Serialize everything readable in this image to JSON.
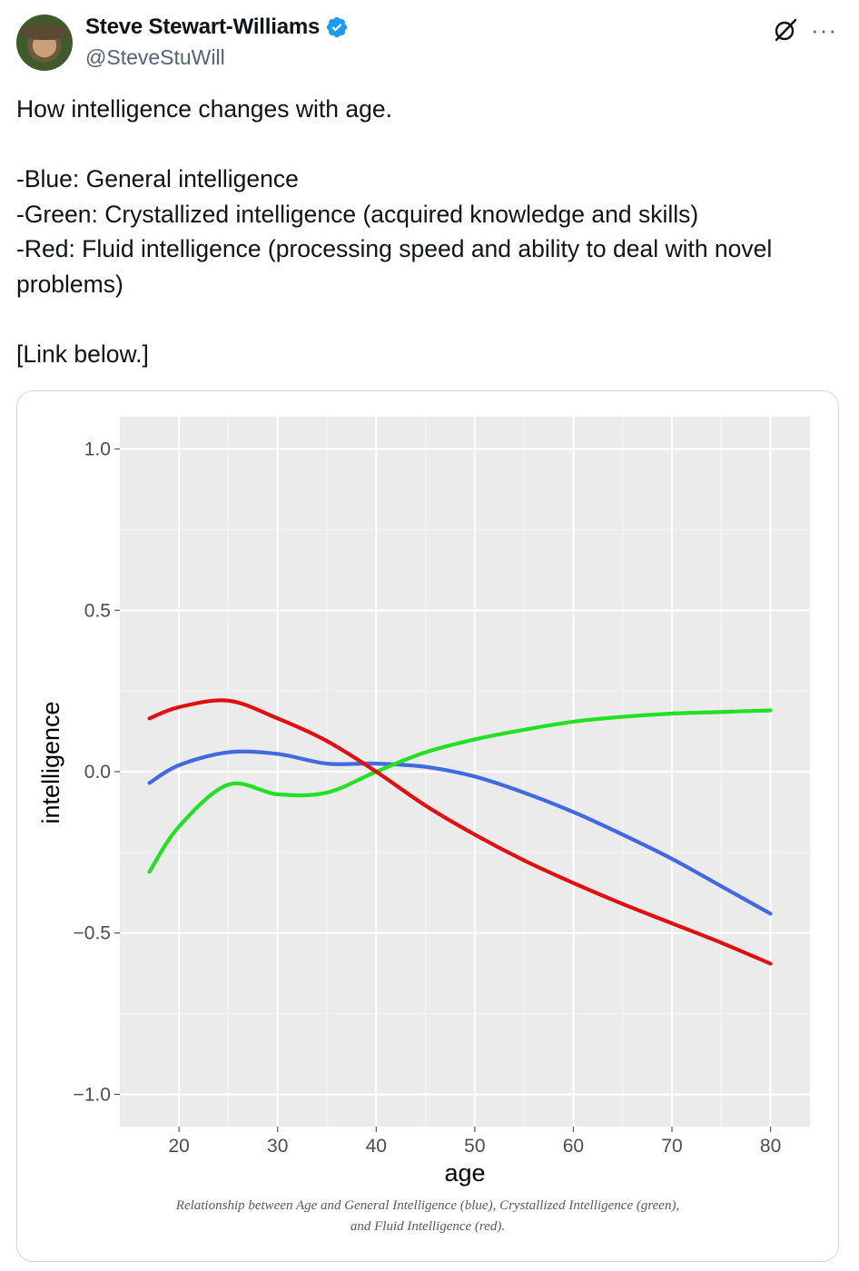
{
  "author": {
    "name": "Steve Stewart-Williams",
    "handle": "@SteveStuWill",
    "verified": true,
    "avatar_icon": "avatar-photo"
  },
  "header_actions": {
    "grok_icon": "grok-icon",
    "more_icon": "more-icon",
    "more_label": "···"
  },
  "tweet": {
    "text": "How intelligence changes with age.\n\n-Blue: General intelligence\n-Green: Crystallized intelligence (acquired knowledge and skills)\n-Red: Fluid intelligence (processing speed and ability to deal with novel problems)\n\n[Link below.]"
  },
  "media": {
    "caption_line1": "Relationship between Age and General Intelligence (blue), Crystallized Intelligence (green),",
    "caption_line2": "and Fluid Intelligence (red)."
  },
  "colors": {
    "blue": "#4169e1",
    "green": "#22e022",
    "red": "#e01010",
    "panel": "#ebebeb",
    "verified": "#1d9bf0"
  },
  "chart_data": {
    "type": "line",
    "xlabel": "age",
    "ylabel": "intelligence",
    "xlim": [
      14,
      84
    ],
    "ylim": [
      -1.1,
      1.1
    ],
    "xticks": [
      20,
      30,
      40,
      50,
      60,
      70,
      80
    ],
    "yticks": [
      1.0,
      0.5,
      0.0,
      -0.5,
      -1.0
    ],
    "ytick_labels": [
      "1.0",
      "0.5",
      "0.0",
      "−0.5",
      "−1.0"
    ],
    "grid": true,
    "x": [
      17,
      20,
      25,
      30,
      35,
      40,
      45,
      50,
      55,
      60,
      65,
      70,
      75,
      80
    ],
    "series": [
      {
        "color": "#4169e1",
        "values": [
          -0.035,
          0.02,
          0.06,
          0.055,
          0.025,
          0.025,
          0.015,
          -0.015,
          -0.065,
          -0.125,
          -0.195,
          -0.27,
          -0.355,
          -0.44
        ]
      },
      {
        "color": "#22e022",
        "values": [
          -0.31,
          -0.17,
          -0.04,
          -0.07,
          -0.065,
          0.0,
          0.06,
          0.1,
          0.13,
          0.155,
          0.17,
          0.18,
          0.185,
          0.19
        ]
      },
      {
        "color": "#e01010",
        "values": [
          0.165,
          0.2,
          0.22,
          0.165,
          0.095,
          0.0,
          -0.105,
          -0.195,
          -0.275,
          -0.345,
          -0.41,
          -0.47,
          -0.53,
          -0.595
        ]
      }
    ]
  }
}
